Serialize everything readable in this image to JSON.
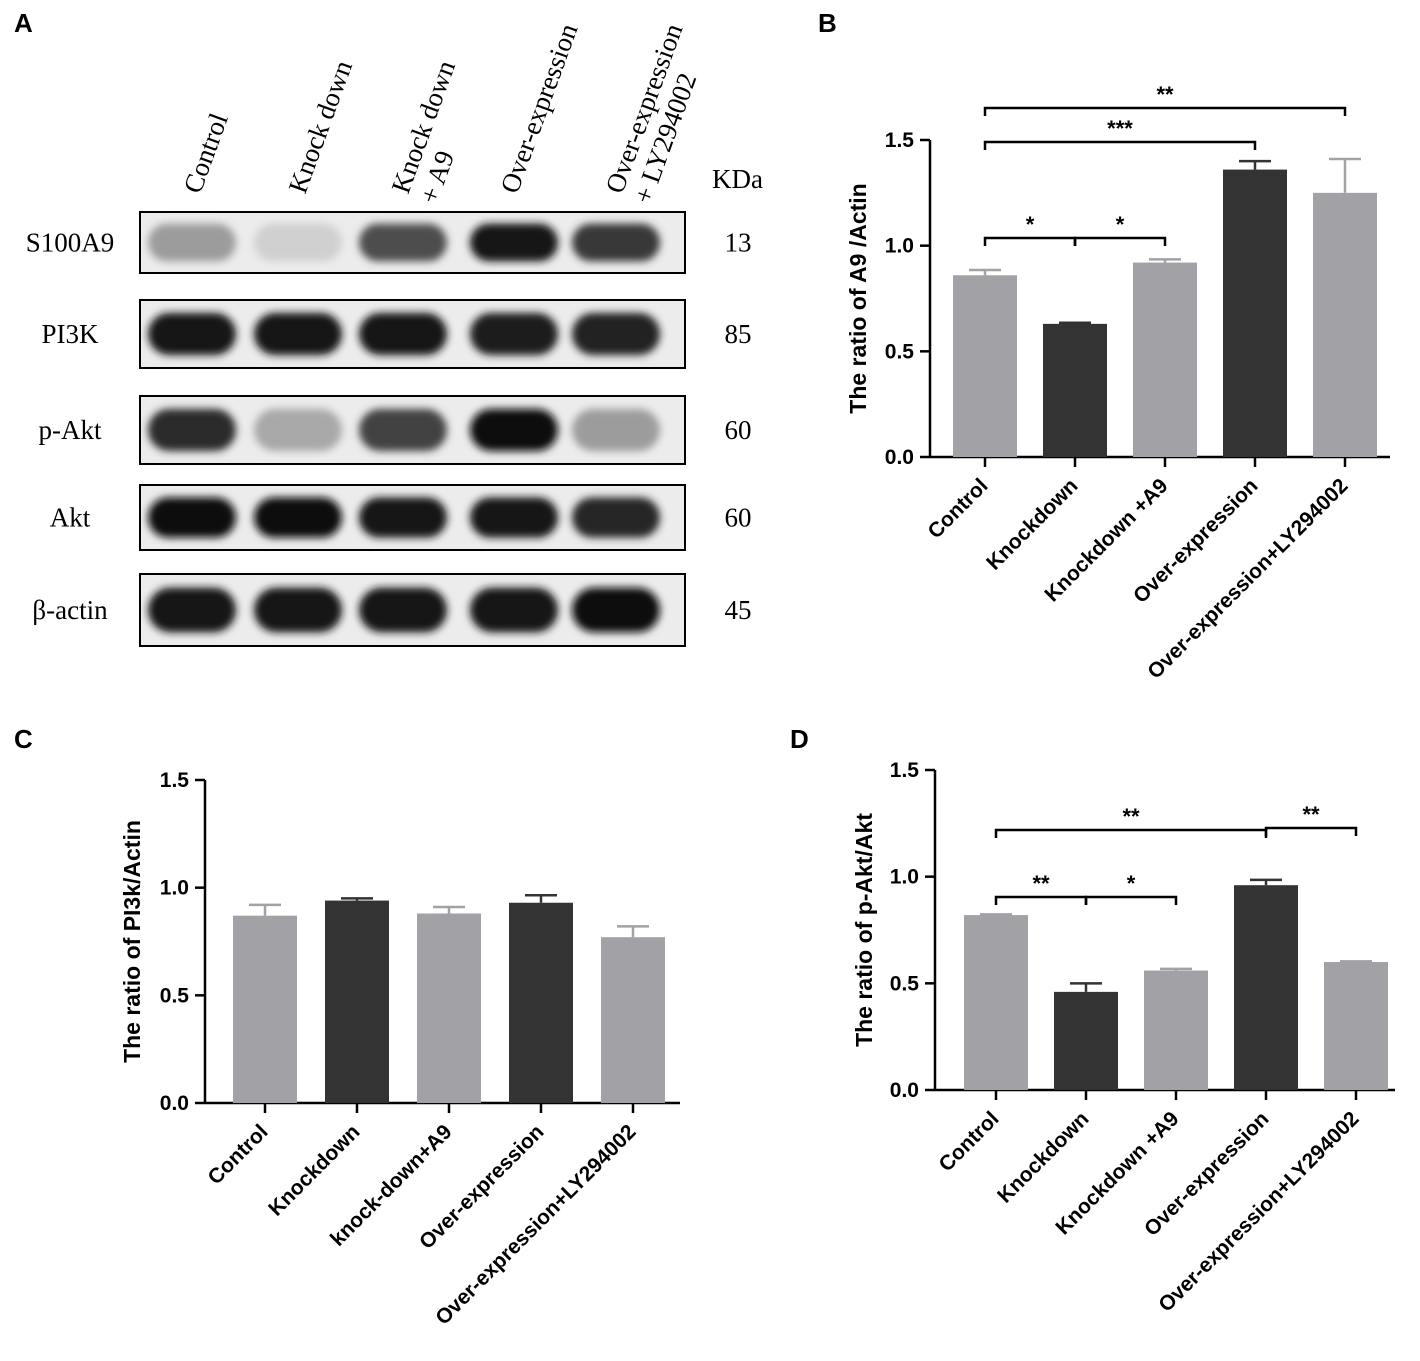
{
  "panels": {
    "a": {
      "letter": "A",
      "lanes": [
        {
          "line1": "Control",
          "line2": ""
        },
        {
          "line1": "Knock down",
          "line2": ""
        },
        {
          "line1": "Knock down",
          "line2": "+ A9"
        },
        {
          "line1": "Over-expression",
          "line2": ""
        },
        {
          "line1": "Over-expression",
          "line2": "+ LY294002"
        }
      ],
      "kda_label": "KDa",
      "rows": [
        {
          "protein": "S100A9",
          "kda": "13",
          "intensities": [
            0.35,
            0.12,
            0.7,
            0.95,
            0.8
          ]
        },
        {
          "protein": "PI3K",
          "kda": "85",
          "intensities": [
            0.95,
            0.95,
            0.95,
            0.93,
            0.9
          ]
        },
        {
          "protein": "p-Akt",
          "kda": "60",
          "intensities": [
            0.85,
            0.3,
            0.75,
            0.98,
            0.35
          ]
        },
        {
          "protein": "Akt",
          "kda": "60",
          "intensities": [
            0.97,
            0.97,
            0.95,
            0.95,
            0.88
          ]
        },
        {
          "protein": "β-actin",
          "kda": "45",
          "intensities": [
            0.95,
            0.95,
            0.95,
            0.95,
            0.97
          ]
        }
      ]
    },
    "b": {
      "letter": "B"
    },
    "c": {
      "letter": "C"
    },
    "d": {
      "letter": "D"
    }
  },
  "colors": {
    "light_bar": "#a2a1a6",
    "dark_bar": "#333333",
    "axis": "#000000"
  },
  "chart_data": [
    {
      "id": "b",
      "type": "bar",
      "ylabel": "The ratio of A9 /Actin",
      "categories": [
        "Control",
        "Knockdown",
        "Knockdown +A9",
        "Over-expression",
        "Over-expression+LY294002"
      ],
      "values": [
        0.86,
        0.63,
        0.92,
        1.36,
        1.25
      ],
      "errors": [
        0.025,
        0.005,
        0.015,
        0.04,
        0.16
      ],
      "bar_colors": [
        "light",
        "dark",
        "light",
        "dark",
        "light"
      ],
      "ylim": [
        0,
        1.5
      ],
      "yticks": [
        "0.0",
        "0.5",
        "1.0",
        "1.5"
      ],
      "significance": [
        {
          "from": 0,
          "to": 1,
          "label": "*"
        },
        {
          "from": 1,
          "to": 2,
          "label": "*"
        },
        {
          "from": 0,
          "to": 3,
          "label": "***"
        },
        {
          "from": 0,
          "to": 4,
          "label": "**"
        }
      ]
    },
    {
      "id": "c",
      "type": "bar",
      "ylabel": "The ratio of PI3k/Actin",
      "categories": [
        "Control",
        "Knockdown",
        "knock-down+A9",
        "Over-expression",
        "Over-expression+LY294002"
      ],
      "values": [
        0.87,
        0.94,
        0.88,
        0.93,
        0.77
      ],
      "errors": [
        0.05,
        0.01,
        0.03,
        0.035,
        0.05
      ],
      "bar_colors": [
        "light",
        "dark",
        "light",
        "dark",
        "light"
      ],
      "ylim": [
        0,
        1.5
      ],
      "yticks": [
        "0.0",
        "0.5",
        "1.0",
        "1.5"
      ],
      "significance": []
    },
    {
      "id": "d",
      "type": "bar",
      "ylabel": "The ratio of p-Akt/Akt",
      "categories": [
        "Control",
        "Knockdown",
        "Knockdown +A9",
        "Over-expression",
        "Over-expression+LY294002"
      ],
      "values": [
        0.82,
        0.46,
        0.56,
        0.96,
        0.6
      ],
      "errors": [
        0.003,
        0.04,
        0.008,
        0.025,
        0.003
      ],
      "bar_colors": [
        "light",
        "dark",
        "light",
        "dark",
        "light"
      ],
      "ylim": [
        0,
        1.5
      ],
      "yticks": [
        "0.0",
        "0.5",
        "1.0",
        "1.5"
      ],
      "significance": [
        {
          "from": 0,
          "to": 1,
          "label": "**"
        },
        {
          "from": 1,
          "to": 2,
          "label": "*"
        },
        {
          "from": 0,
          "to": 3,
          "label": "**"
        },
        {
          "from": 3,
          "to": 4,
          "label": "**"
        }
      ]
    }
  ]
}
